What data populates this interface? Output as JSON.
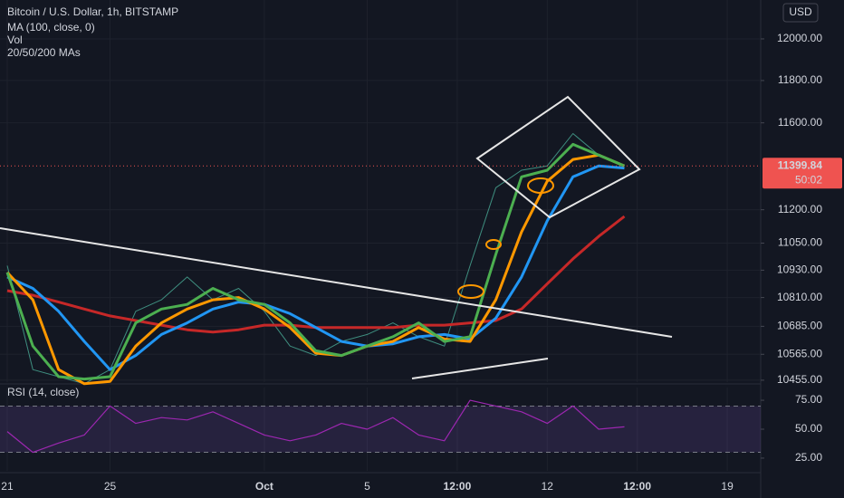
{
  "chart_data": [
    {
      "type": "line",
      "title": "Bitcoin / U.S. Dollar, 1h, BITSTAMP",
      "indicators": [
        "MA (100, close, 0)",
        "Vol",
        "20/50/200 MAs"
      ],
      "currency": "USD",
      "log_scale": true,
      "grid": true,
      "x": [
        0,
        1,
        2,
        3,
        4,
        5,
        6,
        7,
        8,
        9,
        10,
        11,
        12,
        13,
        14,
        15,
        16,
        17,
        18,
        19,
        20,
        21,
        22,
        23,
        24
      ],
      "xlim": [
        -0.28,
        29.3
      ],
      "xticks": [
        {
          "value": 0,
          "label": "21"
        },
        {
          "value": 4,
          "label": "25"
        },
        {
          "value": 10,
          "label": "Oct"
        },
        {
          "value": 14,
          "label": "5"
        },
        {
          "value": 17.5,
          "label": "12:00"
        },
        {
          "value": 21,
          "label": "12"
        },
        {
          "value": 24.5,
          "label": "12:00"
        },
        {
          "value": 28,
          "label": "19"
        }
      ],
      "ylim": [
        10447,
        12190
      ],
      "yticks": [
        {
          "value": 10455,
          "label": "10455.00"
        },
        {
          "value": 10565,
          "label": "10565.00"
        },
        {
          "value": 10685,
          "label": "10685.00"
        },
        {
          "value": 10810,
          "label": "10810.00"
        },
        {
          "value": 10930,
          "label": "10930.00"
        },
        {
          "value": 11050,
          "label": "11050.00"
        },
        {
          "value": 11200,
          "label": "11200.00"
        },
        {
          "value": 11600,
          "label": "11600.00"
        },
        {
          "value": 11800,
          "label": "11800.00"
        },
        {
          "value": 12000,
          "label": "12000.00"
        }
      ],
      "last_price": {
        "value": 11399.84,
        "label": "11399.84"
      },
      "countdown": "50:02",
      "series": [
        {
          "color": "#3f8f80",
          "width": 1,
          "values": [
            10950,
            10500,
            10470,
            10440,
            10500,
            10750,
            10800,
            10900,
            10800,
            10850,
            10750,
            10600,
            10560,
            10620,
            10650,
            10700,
            10640,
            10600,
            10950,
            11300,
            11380,
            11400,
            11550,
            11450,
            11400
          ]
        },
        {
          "color": "#c62828",
          "width": 3,
          "values": [
            10840,
            10820,
            10790,
            10760,
            10730,
            10710,
            10690,
            10670,
            10660,
            10670,
            10690,
            10690,
            10680,
            10680,
            10680,
            10680,
            10690,
            10690,
            10700,
            10710,
            10760,
            10870,
            10980,
            11080,
            11170
          ]
        },
        {
          "color": "#2196f3",
          "width": 3,
          "values": [
            10900,
            10850,
            10750,
            10620,
            10500,
            10560,
            10650,
            10700,
            10760,
            10790,
            10780,
            10740,
            10680,
            10620,
            10600,
            10610,
            10640,
            10650,
            10630,
            10720,
            10900,
            11150,
            11350,
            11400,
            11390
          ]
        },
        {
          "color": "#ff9800",
          "width": 3,
          "values": [
            10920,
            10800,
            10500,
            10440,
            10450,
            10600,
            10700,
            10760,
            10800,
            10810,
            10760,
            10680,
            10570,
            10560,
            10600,
            10620,
            10680,
            10630,
            10620,
            10800,
            11100,
            11330,
            11430,
            11450,
            11400
          ]
        },
        {
          "color": "#4caf50",
          "width": 3,
          "values": [
            10920,
            10600,
            10470,
            10460,
            10470,
            10700,
            10760,
            10780,
            10850,
            10800,
            10780,
            10700,
            10580,
            10560,
            10600,
            10640,
            10700,
            10620,
            10640,
            11000,
            11350,
            11380,
            11500,
            11450,
            11400
          ]
        }
      ]
    },
    {
      "type": "line",
      "title": "RSI (14, close)",
      "x": [
        0,
        1,
        2,
        3,
        4,
        5,
        6,
        7,
        8,
        9,
        10,
        11,
        12,
        13,
        14,
        15,
        16,
        17,
        18,
        19,
        20,
        21,
        22,
        23,
        24
      ],
      "xlim": [
        -0.28,
        29.3
      ],
      "ylim": [
        14,
        86
      ],
      "yticks": [
        {
          "value": 25,
          "label": "25.00"
        },
        {
          "value": 50,
          "label": "50.00"
        },
        {
          "value": 75,
          "label": "75.00"
        }
      ],
      "band": [
        30,
        70
      ],
      "series": [
        {
          "color": "#9c27b0",
          "width": 1.2,
          "values": [
            48,
            30,
            38,
            45,
            70,
            55,
            60,
            58,
            65,
            55,
            45,
            40,
            45,
            55,
            50,
            60,
            45,
            40,
            75,
            70,
            65,
            55,
            70,
            50,
            52
          ]
        }
      ]
    }
  ]
}
